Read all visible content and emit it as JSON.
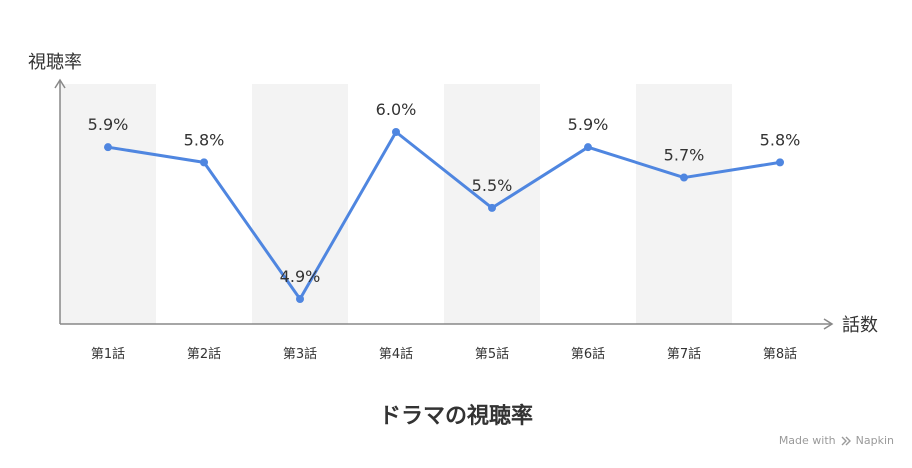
{
  "chart_data": {
    "type": "line",
    "title": "ドラマの視聴率",
    "ylabel": "視聴率",
    "xlabel": "話数",
    "categories": [
      "第1話",
      "第2話",
      "第3話",
      "第4話",
      "第5話",
      "第6話",
      "第7話",
      "第8話"
    ],
    "values": [
      5.9,
      5.8,
      4.9,
      6.0,
      5.5,
      5.9,
      5.7,
      5.8
    ],
    "data_labels": [
      "5.9%",
      "5.8%",
      "4.9%",
      "6.0%",
      "5.5%",
      "5.9%",
      "5.7%",
      "5.8%"
    ],
    "unit": "%",
    "ylim": [
      4.9,
      6.0
    ],
    "grid": false,
    "legend": "none",
    "colors": {
      "line": "#4f86e0",
      "band": "#f3f3f3",
      "axis": "#888888"
    }
  },
  "footer": {
    "watermark_text": "Made with",
    "brand": "Napkin",
    "brand_icon": "napkin-logo-icon"
  }
}
